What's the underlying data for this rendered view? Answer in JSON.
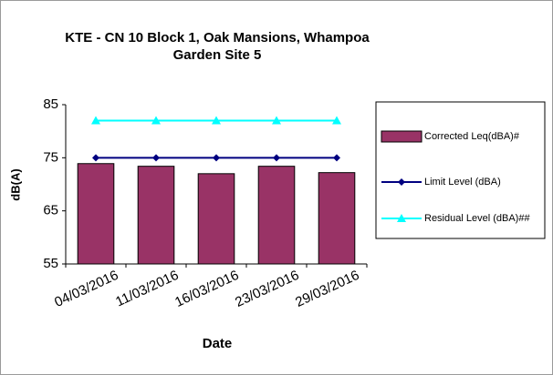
{
  "chart_data": {
    "type": "bar_line",
    "title": [
      "KTE - CN 10 Block 1, Oak Mansions, Whampoa",
      "Garden Site 5"
    ],
    "x_label": "Date",
    "y_label": "dB(A)",
    "categories": [
      "04/03/2016",
      "11/03/2016",
      "16/03/2016",
      "23/03/2016",
      "29/03/2016"
    ],
    "series": [
      {
        "name": "Corrected Leq(dBA)#",
        "color": "#993366",
        "kind": "bar",
        "values": [
          73.9,
          73.4,
          72.0,
          73.4,
          72.2
        ]
      },
      {
        "name": "Limit Level (dBA)",
        "color": "#000080",
        "kind": "line",
        "marker": "diamond",
        "values": [
          75,
          75,
          75,
          75,
          75
        ]
      },
      {
        "name": "Residual Level (dBA)##",
        "color": "#00FFFF",
        "kind": "line",
        "marker": "triangle",
        "values": [
          82,
          82,
          82,
          82,
          82
        ]
      }
    ],
    "ylim": [
      55,
      85
    ],
    "yticks": [
      55,
      65,
      75,
      85
    ],
    "legend": "right"
  }
}
